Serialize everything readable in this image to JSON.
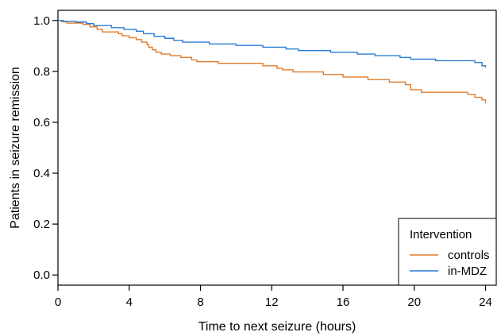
{
  "chart_data": {
    "type": "line",
    "title": "",
    "xlabel": "Time to next seizure (hours)",
    "ylabel": "Patients in seizure remission",
    "xlim": [
      0,
      24.6
    ],
    "ylim": [
      -0.04,
      1.04
    ],
    "x_ticks": [
      0,
      4,
      8,
      12,
      16,
      20,
      24
    ],
    "y_ticks": [
      0.0,
      0.2,
      0.4,
      0.6,
      0.8,
      1.0
    ],
    "x_tick_labels": [
      "0",
      "4",
      "8",
      "12",
      "16",
      "20",
      "24"
    ],
    "y_tick_labels": [
      "0.0",
      "0.2",
      "0.4",
      "0.6",
      "0.8",
      "1.0"
    ],
    "grid": false,
    "step": true,
    "legend": {
      "title": "Intervention",
      "position": "bottom-right"
    },
    "series": [
      {
        "name": "controls",
        "color": "#e07b2a",
        "points": [
          [
            0,
            1.0
          ],
          [
            0.2,
            0.995
          ],
          [
            0.5,
            0.99
          ],
          [
            1.4,
            0.985
          ],
          [
            1.8,
            0.975
          ],
          [
            2.2,
            0.965
          ],
          [
            2.5,
            0.955
          ],
          [
            3.4,
            0.948
          ],
          [
            3.6,
            0.94
          ],
          [
            4.0,
            0.932
          ],
          [
            4.4,
            0.925
          ],
          [
            4.7,
            0.915
          ],
          [
            5.0,
            0.905
          ],
          [
            5.1,
            0.895
          ],
          [
            5.3,
            0.885
          ],
          [
            5.5,
            0.875
          ],
          [
            5.8,
            0.868
          ],
          [
            6.3,
            0.862
          ],
          [
            6.9,
            0.855
          ],
          [
            7.5,
            0.845
          ],
          [
            7.8,
            0.838
          ],
          [
            9.0,
            0.832
          ],
          [
            11.5,
            0.822
          ],
          [
            12.3,
            0.812
          ],
          [
            12.6,
            0.806
          ],
          [
            13.2,
            0.798
          ],
          [
            14.9,
            0.788
          ],
          [
            16.0,
            0.778
          ],
          [
            17.4,
            0.768
          ],
          [
            18.6,
            0.758
          ],
          [
            19.5,
            0.748
          ],
          [
            19.8,
            0.728
          ],
          [
            20.4,
            0.718
          ],
          [
            23.0,
            0.71
          ],
          [
            23.4,
            0.698
          ],
          [
            23.8,
            0.688
          ],
          [
            24.0,
            0.675
          ]
        ]
      },
      {
        "name": "in-MDZ",
        "color": "#2a7dd4",
        "points": [
          [
            0,
            1.0
          ],
          [
            0.3,
            0.997
          ],
          [
            1.0,
            0.994
          ],
          [
            1.6,
            0.988
          ],
          [
            2.0,
            0.98
          ],
          [
            3.0,
            0.972
          ],
          [
            3.7,
            0.965
          ],
          [
            4.4,
            0.958
          ],
          [
            4.8,
            0.948
          ],
          [
            5.4,
            0.938
          ],
          [
            6.0,
            0.93
          ],
          [
            6.5,
            0.922
          ],
          [
            7.0,
            0.915
          ],
          [
            8.5,
            0.908
          ],
          [
            10.0,
            0.902
          ],
          [
            11.5,
            0.895
          ],
          [
            12.8,
            0.888
          ],
          [
            13.5,
            0.882
          ],
          [
            15.3,
            0.875
          ],
          [
            16.8,
            0.868
          ],
          [
            17.8,
            0.862
          ],
          [
            19.2,
            0.855
          ],
          [
            19.8,
            0.848
          ],
          [
            21.2,
            0.842
          ],
          [
            23.4,
            0.835
          ],
          [
            23.8,
            0.822
          ],
          [
            24.0,
            0.815
          ]
        ]
      }
    ]
  }
}
